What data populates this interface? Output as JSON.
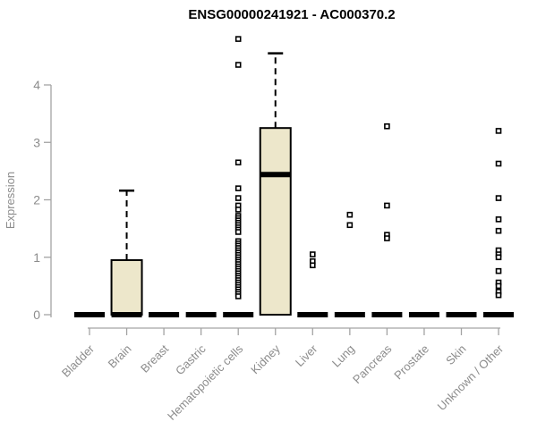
{
  "title": "ENSG00000241921 - AC000370.2",
  "chart_data": {
    "type": "boxplot",
    "title": "ENSG00000241921 - AC000370.2",
    "xlabel": "",
    "ylabel": "Expression",
    "ylim": [
      0,
      4.9
    ],
    "yticks": [
      0,
      1,
      2,
      3,
      4
    ],
    "grid": false,
    "legend": "none",
    "colors": {
      "box_fill": "#EDE7CB",
      "box_stroke": "#000000",
      "median": "#000000",
      "whisker": "#000000",
      "outlier_stroke": "#000000",
      "outlier_fill": "#FFFFFF",
      "axis_line": "#A3A3A3",
      "axis_text": "#8C8C8C",
      "title_text": "#000000"
    },
    "categories": [
      "Bladder",
      "Brain",
      "Breast",
      "Gastric",
      "Hematopoietic cells",
      "Kidney",
      "Liver",
      "Lung",
      "Pancreas",
      "Prostate",
      "Skin",
      "Unknown / Other"
    ],
    "boxes": [
      {
        "label": "Bladder",
        "q1": 0,
        "median": 0,
        "q3": 0,
        "whisker_low": 0,
        "whisker_high": 0,
        "outliers": []
      },
      {
        "label": "Brain",
        "q1": 0,
        "median": 0,
        "q3": 0.95,
        "whisker_low": 0,
        "whisker_high": 2.16,
        "outliers": []
      },
      {
        "label": "Breast",
        "q1": 0,
        "median": 0,
        "q3": 0,
        "whisker_low": 0,
        "whisker_high": 0,
        "outliers": []
      },
      {
        "label": "Gastric",
        "q1": 0,
        "median": 0,
        "q3": 0,
        "whisker_low": 0,
        "whisker_high": 0,
        "outliers": []
      },
      {
        "label": "Hematopoietic cells",
        "q1": 0,
        "median": 0,
        "q3": 0,
        "whisker_low": 0,
        "whisker_high": 0,
        "outliers": [
          4.8,
          4.35,
          2.65,
          2.2,
          2.03,
          1.9,
          1.83,
          1.72,
          1.68,
          1.64,
          1.6,
          1.56,
          1.52,
          1.48,
          1.44,
          1.28,
          1.24,
          1.2,
          1.16,
          1.12,
          1.08,
          1.04,
          1.0,
          0.96,
          0.92,
          0.88,
          0.84,
          0.8,
          0.76,
          0.72,
          0.68,
          0.64,
          0.6,
          0.56,
          0.52,
          0.48,
          0.44,
          0.4,
          0.36,
          0.32
        ]
      },
      {
        "label": "Kidney",
        "q1": 0,
        "median": 2.44,
        "q3": 3.25,
        "whisker_low": 0,
        "whisker_high": 4.55,
        "outliers": []
      },
      {
        "label": "Liver",
        "q1": 0,
        "median": 0,
        "q3": 0,
        "whisker_low": 0,
        "whisker_high": 0,
        "outliers": [
          1.05,
          0.93,
          0.86
        ]
      },
      {
        "label": "Lung",
        "q1": 0,
        "median": 0,
        "q3": 0,
        "whisker_low": 0,
        "whisker_high": 0,
        "outliers": [
          1.74,
          1.56
        ]
      },
      {
        "label": "Pancreas",
        "q1": 0,
        "median": 0,
        "q3": 0,
        "whisker_low": 0,
        "whisker_high": 0,
        "outliers": [
          3.28,
          1.9,
          1.39,
          1.33
        ]
      },
      {
        "label": "Prostate",
        "q1": 0,
        "median": 0,
        "q3": 0,
        "whisker_low": 0,
        "whisker_high": 0,
        "outliers": []
      },
      {
        "label": "Skin",
        "q1": 0,
        "median": 0,
        "q3": 0,
        "whisker_low": 0,
        "whisker_high": 0,
        "outliers": []
      },
      {
        "label": "Unknown / Other",
        "q1": 0,
        "median": 0,
        "q3": 0,
        "whisker_low": 0,
        "whisker_high": 0,
        "outliers": [
          3.2,
          2.63,
          2.03,
          1.66,
          1.46,
          1.12,
          1.05,
          1.0,
          0.76,
          0.56,
          0.5,
          0.4,
          0.34
        ]
      }
    ]
  }
}
